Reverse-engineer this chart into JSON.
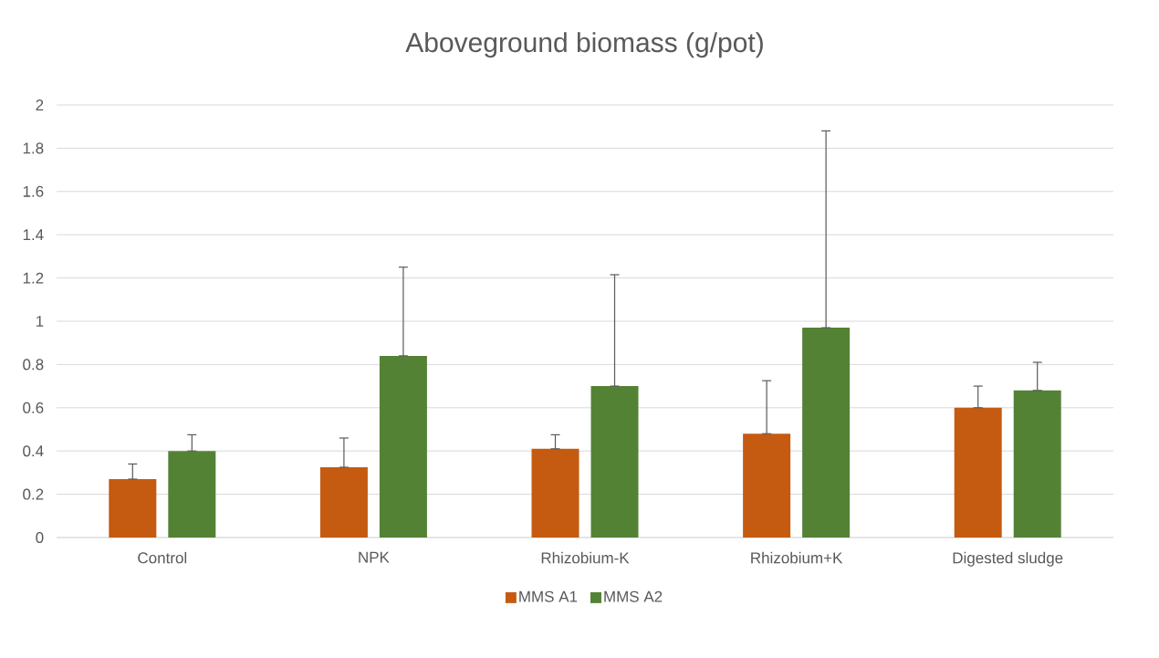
{
  "chart_data": {
    "type": "bar",
    "title": "Aboveground biomass (g/pot)",
    "categories": [
      "Control",
      "NPK",
      "Rhizobium-K",
      "Rhizobium+K",
      "Digested sludge"
    ],
    "series": [
      {
        "name": "MMS A1",
        "color": "#c55a11",
        "values": [
          0.27,
          0.325,
          0.41,
          0.48,
          0.6
        ],
        "errors": [
          [
            0.27,
            0.34
          ],
          [
            0.325,
            0.46
          ],
          [
            0.41,
            0.475
          ],
          [
            0.48,
            0.725
          ],
          [
            0.6,
            0.7
          ]
        ]
      },
      {
        "name": "MMS A2",
        "color": "#548235",
        "values": [
          0.4,
          0.84,
          0.7,
          0.97,
          0.68
        ],
        "errors": [
          [
            0.4,
            0.475
          ],
          [
            0.84,
            1.25
          ],
          [
            0.7,
            1.215
          ],
          [
            0.97,
            1.88
          ],
          [
            0.68,
            0.81
          ]
        ]
      }
    ],
    "ylim": [
      0,
      2
    ],
    "yticks": [
      0,
      0.2,
      0.4,
      0.6,
      0.8,
      1,
      1.2,
      1.4,
      1.6,
      1.8,
      2
    ],
    "grid": "y",
    "legend": "bottom"
  }
}
